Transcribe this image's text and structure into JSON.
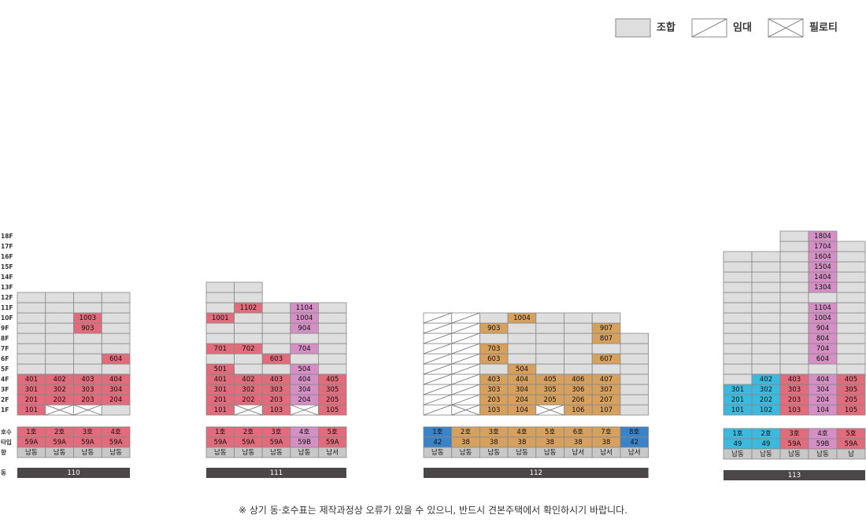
{
  "legend": [
    {
      "label": "조합",
      "style": "plain"
    },
    {
      "label": "임대",
      "style": "diag"
    },
    {
      "label": "필로티",
      "style": "cross"
    }
  ],
  "floor_labels": [
    "18F",
    "17F",
    "16F",
    "15F",
    "14F",
    "13F",
    "12F",
    "11F",
    "10F",
    "9F",
    "8F",
    "7F",
    "6F",
    "5F",
    "4F",
    "3F",
    "2F",
    "1F"
  ],
  "row_labels": {
    "ho": "호수",
    "type": "타입",
    "dir": "향",
    "dong": "동"
  },
  "colors": {
    "default": "#dedede",
    "red": "#e06c7c",
    "pink": "#d48fc4",
    "orange": "#d6a05e",
    "blue": "#3a83c8",
    "cyan": "#3cb9dd",
    "dirbg": "#c8c8c8",
    "bar": "#4b4748",
    "line": "#888888"
  },
  "buildings": [
    {
      "dong": "110",
      "columns": [
        {
          "floors": 12,
          "ho": "1호",
          "type": "59A",
          "dir": "남동",
          "color": "red",
          "units": {
            "4": "401",
            "3": "301",
            "2": "201",
            "1": "101"
          }
        },
        {
          "floors": 12,
          "ho": "2호",
          "type": "59A",
          "dir": "남동",
          "color": "red",
          "piloti": [
            1
          ],
          "units": {
            "4": "402",
            "3": "302",
            "2": "202"
          }
        },
        {
          "floors": 12,
          "ho": "3호",
          "type": "59A",
          "dir": "남동",
          "color": "red",
          "piloti": [
            1
          ],
          "units": {
            "10": "1003",
            "9": "903",
            "4": "403",
            "3": "303",
            "2": "203"
          }
        },
        {
          "floors": 12,
          "ho": "4호",
          "type": "59A",
          "dir": "남동",
          "color": "red",
          "units": {
            "6": "604",
            "4": "404",
            "3": "304",
            "2": "204"
          }
        }
      ]
    },
    {
      "dong": "111",
      "columns": [
        {
          "floors": 13,
          "ho": "1호",
          "type": "59A",
          "dir": "남동",
          "color": "red",
          "units": {
            "10": "1001",
            "7": "701",
            "5": "501",
            "4": "401",
            "3": "301",
            "2": "201",
            "1": "101"
          }
        },
        {
          "floors": 13,
          "ho": "2호",
          "type": "59A",
          "dir": "남동",
          "color": "red",
          "piloti": [
            1
          ],
          "units": {
            "11": "1102",
            "7": "702",
            "4": "402",
            "3": "302",
            "2": "202"
          }
        },
        {
          "floors": 11,
          "ho": "3호",
          "type": "59A",
          "dir": "남동",
          "color": "red",
          "units": {
            "6": "603",
            "4": "403",
            "3": "303",
            "2": "203",
            "1": "103"
          }
        },
        {
          "floors": 11,
          "ho": "4호",
          "type": "59B",
          "dir": "남동",
          "color": "pink",
          "piloti": [
            1
          ],
          "units": {
            "11": "1104",
            "10": "1004",
            "9": "904",
            "7": "704",
            "5": "504",
            "4": "404",
            "3": "304",
            "2": "204"
          }
        },
        {
          "floors": 11,
          "ho": "5호",
          "type": "59A",
          "dir": "남서",
          "color": "red",
          "units": {
            "4": "405",
            "3": "305",
            "2": "205",
            "1": "105"
          }
        }
      ]
    },
    {
      "dong": "112",
      "columns": [
        {
          "floors": 10,
          "ho": "1호",
          "type": "42",
          "dir": "남동",
          "color": "blue",
          "lease": true,
          "units": {}
        },
        {
          "floors": 10,
          "ho": "2호",
          "type": "38",
          "dir": "남동",
          "color": "orange",
          "lease": true,
          "piloti": [
            1
          ],
          "units": {}
        },
        {
          "floors": 10,
          "ho": "3호",
          "type": "38",
          "dir": "남동",
          "color": "orange",
          "units": {
            "9": "903",
            "7": "703",
            "6": "603",
            "4": "403",
            "3": "303",
            "2": "203",
            "1": "103"
          }
        },
        {
          "floors": 10,
          "ho": "4호",
          "type": "38",
          "dir": "남동",
          "color": "orange",
          "units": {
            "10": "1004",
            "5": "504",
            "4": "404",
            "3": "304",
            "2": "204",
            "1": "104"
          }
        },
        {
          "floors": 10,
          "ho": "5호",
          "type": "38",
          "dir": "남동",
          "color": "orange",
          "piloti": [
            1
          ],
          "units": {
            "4": "405",
            "3": "305",
            "2": "205"
          }
        },
        {
          "floors": 10,
          "ho": "6호",
          "type": "38",
          "dir": "남서",
          "color": "orange",
          "units": {
            "4": "406",
            "3": "306",
            "2": "206",
            "1": "106"
          }
        },
        {
          "floors": 10,
          "ho": "7호",
          "type": "38",
          "dir": "남서",
          "color": "orange",
          "units": {
            "9": "907",
            "8": "807",
            "6": "607",
            "4": "407",
            "3": "307",
            "2": "207",
            "1": "107"
          }
        },
        {
          "floors": 8,
          "ho": "8호",
          "type": "42",
          "dir": "남서",
          "color": "blue",
          "units": {}
        }
      ]
    },
    {
      "dong": "113",
      "columns": [
        {
          "floors": 16,
          "ho": "1호",
          "type": "49",
          "dir": "남동",
          "color": "cyan",
          "units": {
            "3": "301",
            "2": "201",
            "1": "101"
          }
        },
        {
          "floors": 16,
          "ho": "2호",
          "type": "49",
          "dir": "남동",
          "color": "cyan",
          "units": {
            "4": "402",
            "3": "302",
            "2": "202",
            "1": "102"
          }
        },
        {
          "floors": 18,
          "ho": "3호",
          "type": "59A",
          "dir": "남동",
          "color": "red",
          "units": {
            "4": "403",
            "3": "303",
            "2": "203",
            "1": "103"
          }
        },
        {
          "floors": 18,
          "ho": "4호",
          "type": "59B",
          "dir": "남동",
          "color": "pink",
          "units": {
            "18": "1804",
            "17": "1704",
            "16": "1604",
            "15": "1504",
            "14": "1404",
            "13": "1304",
            "11": "1104",
            "10": "1004",
            "9": "904",
            "8": "804",
            "7": "704",
            "6": "604",
            "4": "404",
            "3": "304",
            "2": "204",
            "1": "104"
          }
        },
        {
          "floors": 17,
          "ho": "5호",
          "type": "59A",
          "dir": "남",
          "color": "red",
          "units": {
            "4": "405",
            "3": "305",
            "2": "205",
            "1": "105"
          }
        }
      ]
    }
  ],
  "footnote": "※ 상기 동·호수표는 제작과정상 오류가 있을 수 있으니, 반드시 견본주택에서 확인하시기 바랍니다."
}
